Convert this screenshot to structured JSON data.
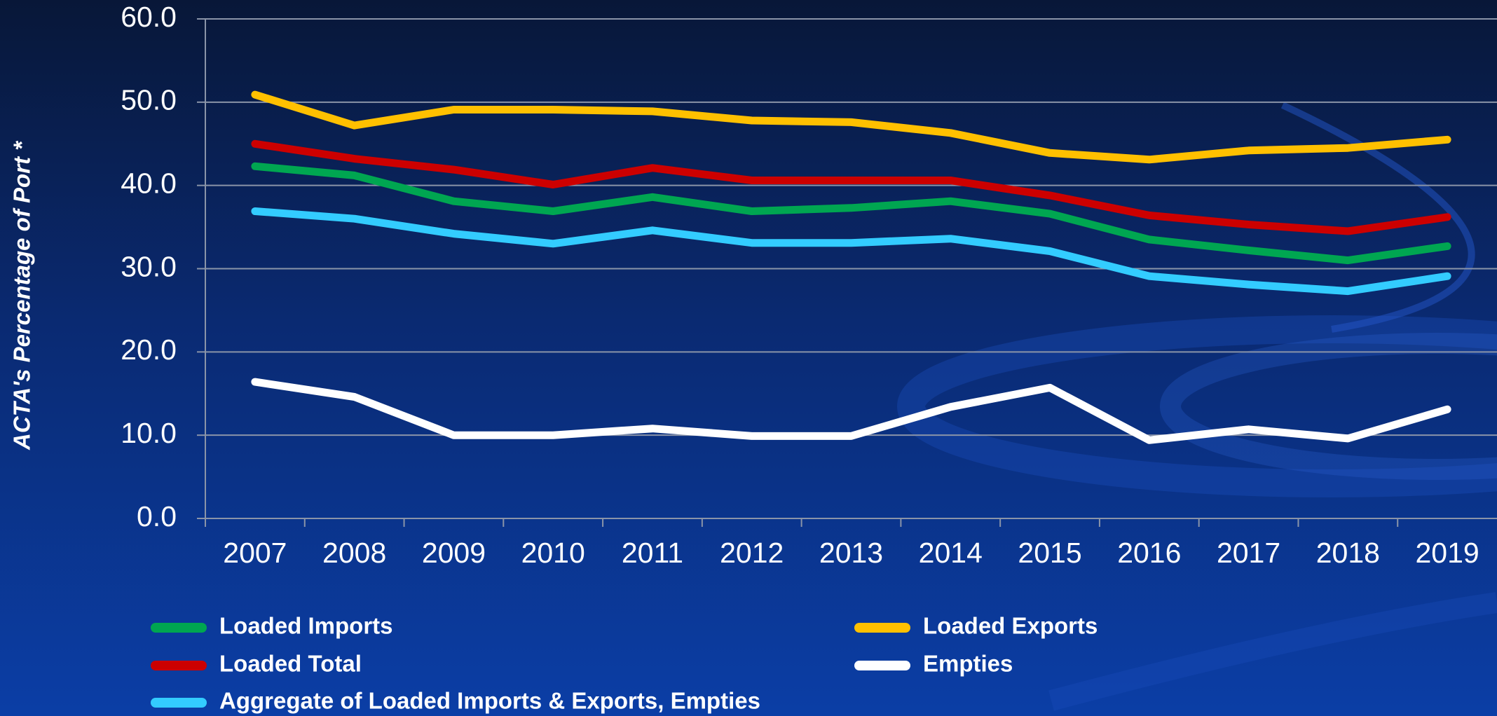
{
  "chart_data": {
    "type": "line",
    "y_label": "ACTA's Percentage of Port *",
    "categories": [
      "2007",
      "2008",
      "2009",
      "2010",
      "2011",
      "2012",
      "2013",
      "2014",
      "2015",
      "2016",
      "2017",
      "2018",
      "2019"
    ],
    "series": [
      {
        "name": "Loaded Imports",
        "color": "#00a651",
        "values": [
          42.3,
          41.2,
          38.1,
          36.9,
          38.6,
          36.9,
          37.3,
          38.1,
          36.6,
          33.5,
          32.2,
          31.0,
          32.7
        ]
      },
      {
        "name": "Loaded Exports",
        "color": "#ffc000",
        "values": [
          50.9,
          47.2,
          49.1,
          49.1,
          48.9,
          47.8,
          47.6,
          46.3,
          43.9,
          43.1,
          44.2,
          44.5,
          45.5
        ]
      },
      {
        "name": "Loaded Total",
        "color": "#cc0000",
        "values": [
          45.0,
          43.2,
          41.9,
          40.1,
          42.1,
          40.6,
          40.6,
          40.6,
          38.8,
          36.4,
          35.3,
          34.5,
          36.2
        ]
      },
      {
        "name": "Empties",
        "color": "#ffffff",
        "values": [
          16.4,
          14.6,
          10.0,
          10.0,
          10.8,
          9.9,
          9.9,
          13.4,
          15.7,
          9.4,
          10.7,
          9.6,
          13.1
        ]
      },
      {
        "name": "Aggregate of Loaded Imports & Exports, Empties",
        "color": "#33ccff",
        "values": [
          36.9,
          36.0,
          34.2,
          33.0,
          34.6,
          33.1,
          33.1,
          33.6,
          32.1,
          29.1,
          28.1,
          27.3,
          29.1
        ]
      }
    ],
    "ylim": [
      0,
      60
    ],
    "yticks": [
      {
        "value": 0,
        "label": "0.0"
      },
      {
        "value": 10,
        "label": "10.0"
      },
      {
        "value": 20,
        "label": "20.0"
      },
      {
        "value": 30,
        "label": "30.0"
      },
      {
        "value": 40,
        "label": "40.0"
      },
      {
        "value": 50,
        "label": "50.0"
      },
      {
        "value": 60,
        "label": "60.0"
      }
    ],
    "grid": true
  }
}
